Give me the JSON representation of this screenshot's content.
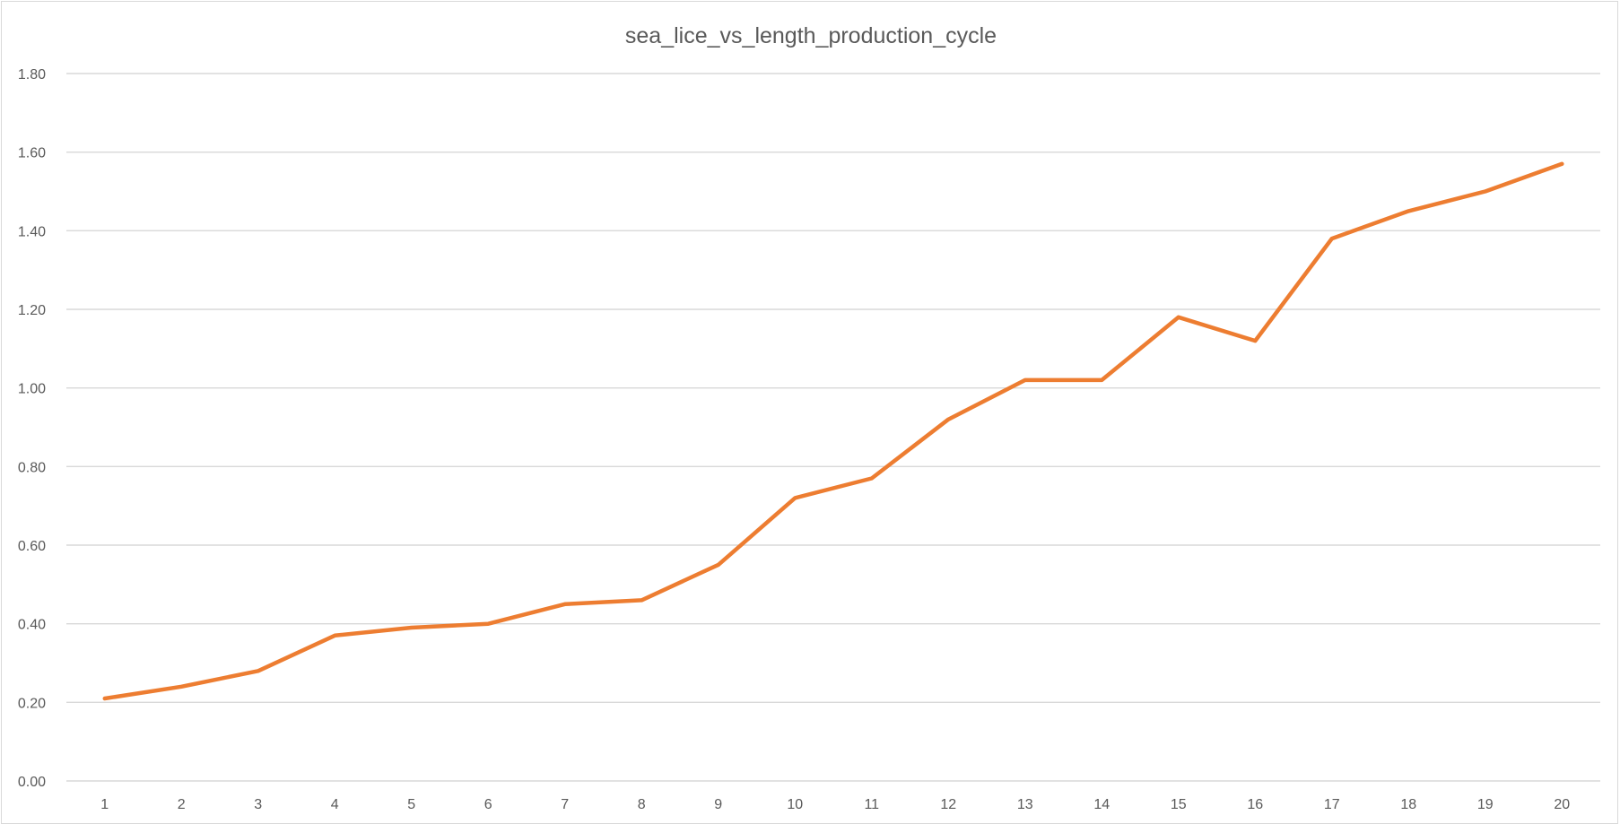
{
  "chart_data": {
    "type": "line",
    "title": "sea_lice_vs_length_production_cycle",
    "xlabel": "",
    "ylabel": "",
    "categories": [
      "1",
      "2",
      "3",
      "4",
      "5",
      "6",
      "7",
      "8",
      "9",
      "10",
      "11",
      "12",
      "13",
      "14",
      "15",
      "16",
      "17",
      "18",
      "19",
      "20"
    ],
    "series": [
      {
        "values": [
          0.21,
          0.24,
          0.28,
          0.37,
          0.39,
          0.4,
          0.45,
          0.46,
          0.55,
          0.72,
          0.77,
          0.92,
          1.02,
          1.02,
          1.18,
          1.12,
          1.38,
          1.45,
          1.5,
          1.57
        ],
        "color": "#ED7D31"
      }
    ],
    "ylim": [
      0,
      1.8
    ],
    "y_ticks": [
      "0.00",
      "0.20",
      "0.40",
      "0.60",
      "0.80",
      "1.00",
      "1.20",
      "1.40",
      "1.60",
      "1.80"
    ],
    "grid": true,
    "legend": "none"
  }
}
